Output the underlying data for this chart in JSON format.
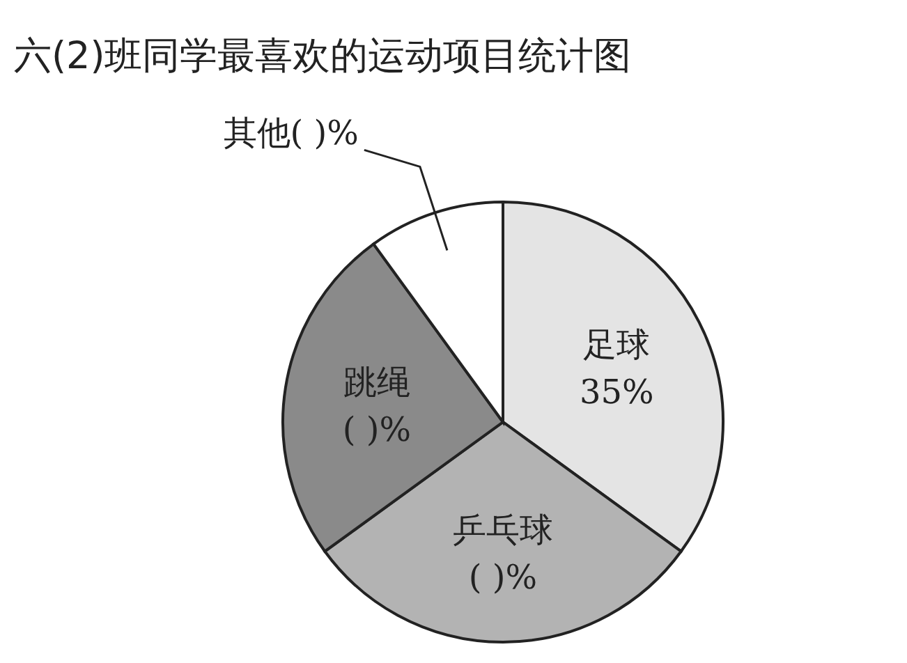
{
  "chart_data": {
    "type": "pie",
    "title": "六(2)班同学最喜欢的运动项目统计图",
    "categories": [
      "足球",
      "乒乓球",
      "跳绳",
      "其他"
    ],
    "values": [
      35,
      30,
      25,
      10
    ],
    "colors": [
      "#e4e4e4",
      "#b3b3b3",
      "#8a8a8a",
      "#ffffff"
    ],
    "value_labels": [
      "35%",
      "(    )%",
      "(    )%",
      "(    )%"
    ]
  }
}
